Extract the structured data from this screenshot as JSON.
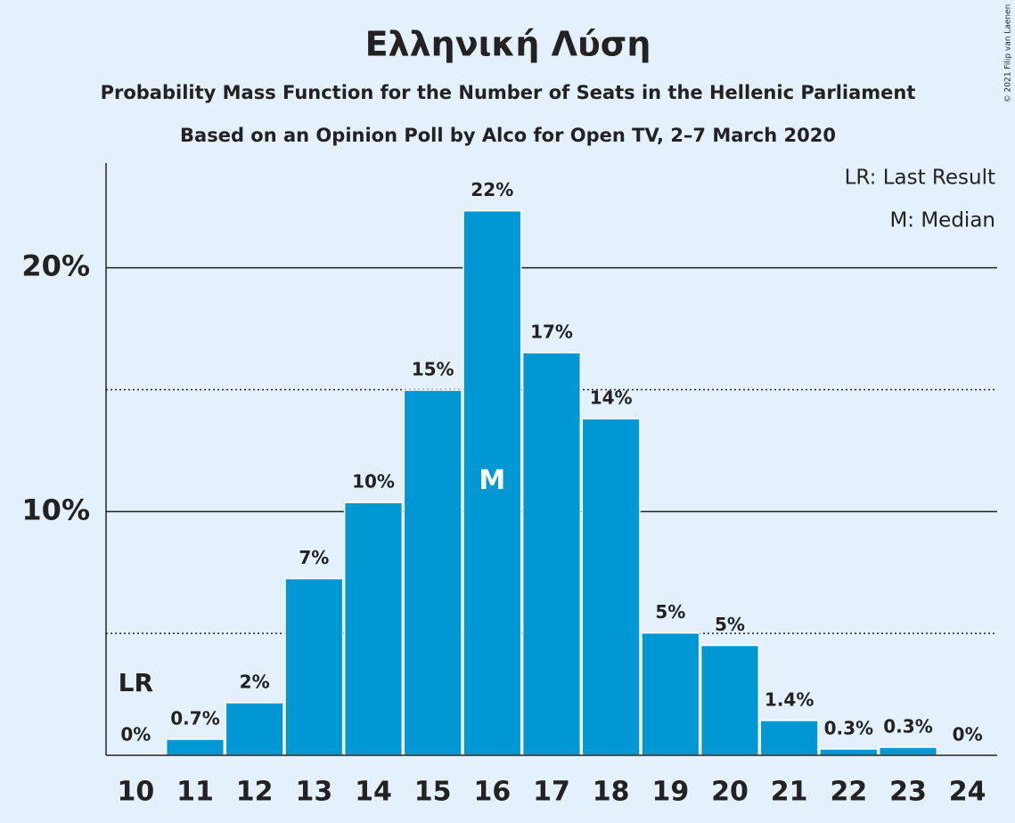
{
  "chart_data": {
    "type": "bar",
    "title": "Ελληνική Λύση",
    "subtitle": [
      "Probability Mass Function for the Number of Seats in the Hellenic Parliament",
      "Based on an Opinion Poll by Alco for Open TV, 2–7 March 2020"
    ],
    "copyright": "© 2021 Filip van Laenen",
    "categories": [
      "10",
      "11",
      "12",
      "13",
      "14",
      "15",
      "16",
      "17",
      "18",
      "19",
      "20",
      "21",
      "22",
      "23",
      "24"
    ],
    "values": [
      0,
      0.66,
      2.16,
      7.25,
      10.37,
      14.98,
      22.34,
      16.52,
      13.81,
      5.02,
      4.51,
      1.43,
      0.26,
      0.33,
      0
    ],
    "value_labels": [
      "0%",
      "0.7%",
      "2%",
      "7%",
      "10%",
      "15%",
      "22%",
      "17%",
      "14%",
      "5%",
      "5%",
      "1.4%",
      "0.3%",
      "0.3%",
      "0%"
    ],
    "color": "#0098d4",
    "ylim": [
      0,
      24.3
    ],
    "yticks": [
      {
        "value": 10,
        "label": "10%"
      },
      {
        "value": 20,
        "label": "20%"
      }
    ],
    "minor_yticks": [
      5,
      15
    ],
    "grid": true,
    "annotations": [
      {
        "text": "LR",
        "x": "10"
      },
      {
        "text": "M",
        "x": "16"
      }
    ],
    "legend": [
      "LR: Last Result",
      "M: Median"
    ],
    "legend_position": "upper right"
  }
}
